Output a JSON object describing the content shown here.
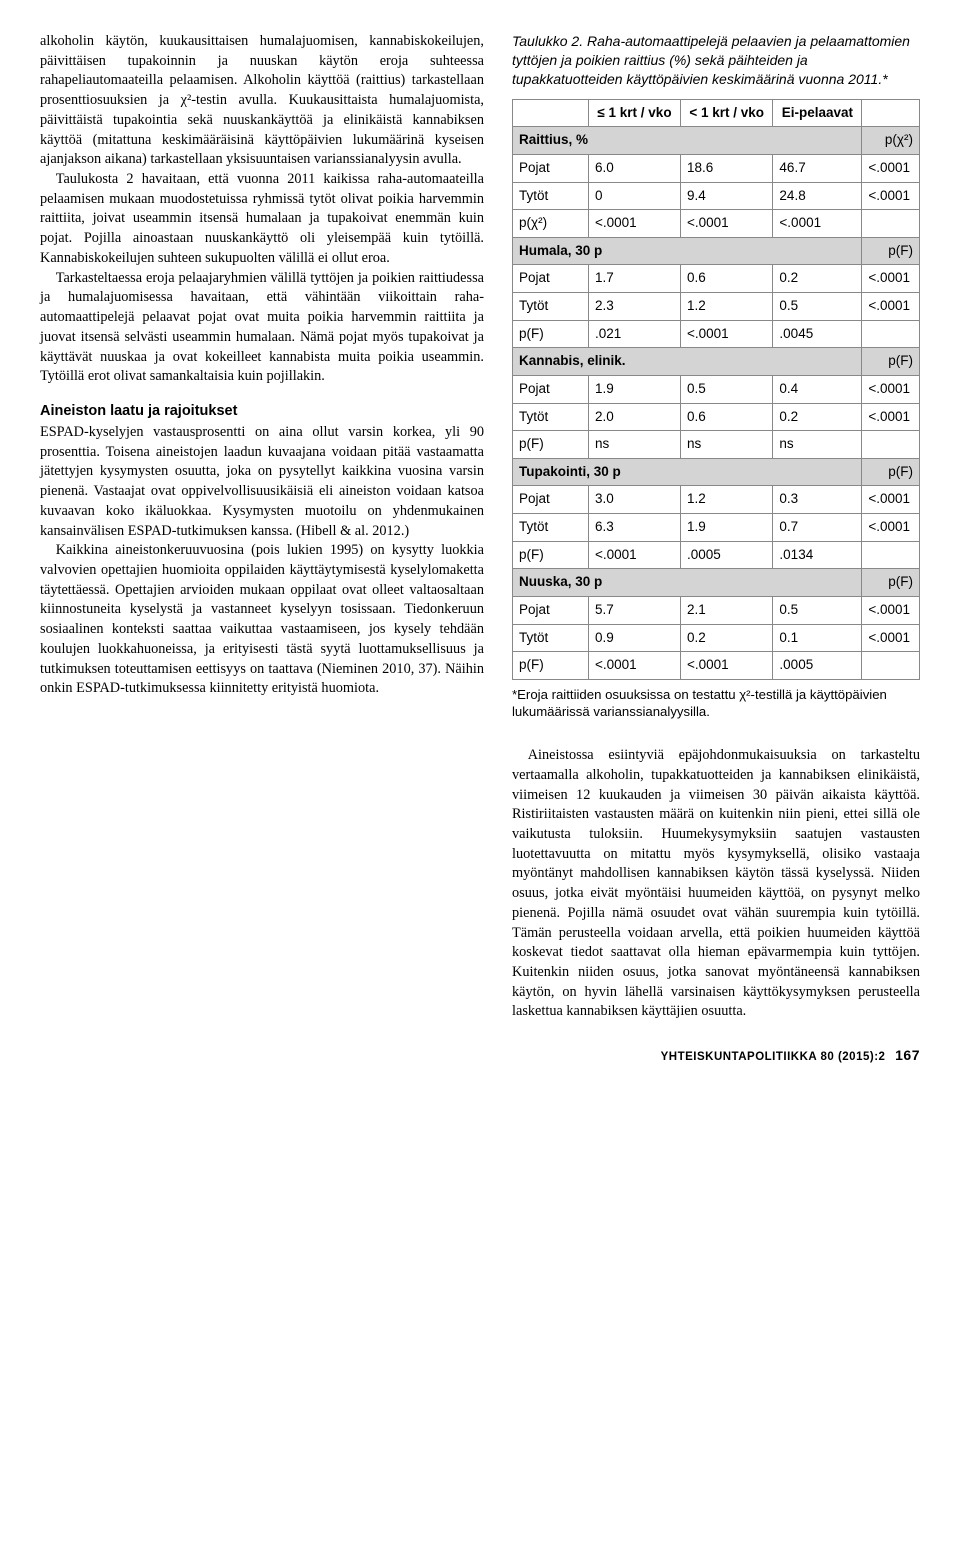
{
  "left": {
    "p1": "alkoholin käytön, kuukausittaisen humalajuomisen, kannabiskokeilujen, päivittäisen tupakoinnin ja nuuskan käytön eroja suhteessa rahapeliautomaateilla pelaamisen. Alkoholin käyttöä (raittius) tarkastellaan prosenttiosuuksien ja χ²-testin avulla. Kuukausittaista humalajuomista, päivittäistä tupakointia sekä nuuskankäyttöä ja elinikäistä kannabiksen käyttöä (mitattuna keskimääräisinä käyttöpäivien lukumäärinä kyseisen ajanjakson aikana) tarkastellaan yksisuuntaisen varianssianalyysin avulla.",
    "p2": "Taulukosta 2 havaitaan, että vuonna 2011 kaikissa raha-automaateilla pelaamisen mukaan muodostetuissa ryhmissä tytöt olivat poikia harvemmin raittiita, joivat useammin itsensä humalaan ja tupakoivat enemmän kuin pojat. Pojilla ainoastaan nuuskankäyttö oli yleisempää kuin tytöillä. Kannabiskokeilujen suhteen sukupuolten välillä ei ollut eroa.",
    "p3": "Tarkasteltaessa eroja pelaajaryhmien välillä tyttöjen ja poikien raittiudessa ja humalajuomisessa havaitaan, että vähintään viikoittain raha-automaattipelejä pelaavat pojat ovat muita poikia harvemmin raittiita ja juovat itsensä selvästi useammin humalaan. Nämä pojat myös tupakoivat ja käyttävät nuuskaa ja ovat kokeilleet kannabista muita poikia useammin. Tytöillä erot olivat samankaltaisia kuin pojillakin.",
    "h1": "Aineiston laatu ja rajoitukset",
    "p4": "ESPAD-kyselyjen vastausprosentti on aina ollut varsin korkea, yli 90 prosenttia. Toisena aineistojen laadun kuvaajana voidaan pitää vastaamatta jätettyjen kysymysten osuutta, joka on pysytellyt kaikkina vuosina varsin pienenä. Vastaajat ovat oppivelvollisuusikäisiä eli aineiston voidaan katsoa kuvaavan koko ikäluokkaa. Kysymysten muotoilu on yhdenmukainen kansainvälisen ESPAD-tutkimuksen kanssa. (Hibell & al. 2012.)",
    "p5": "Kaikkina aineistonkeruuvuosina (pois lukien 1995) on kysytty luokkia valvovien opettajien huomioita oppilaiden käyttäytymisestä kyselylomaketta täytettäessä. Opettajien arvioiden mukaan oppilaat ovat olleet valtaosaltaan kiinnostuneita kyselystä ja vastanneet kyselyyn tosissaan. Tiedonkeruun sosiaalinen konteksti saattaa vaikuttaa vastaamiseen, jos kysely tehdään koulujen luokkahuoneissa, ja erityisesti tästä syytä luottamuksellisuus ja tutkimuksen toteuttamisen eettisyys on taattava (Nieminen 2010, 37). Näihin onkin ESPAD-tutkimuksessa kiinnitetty erityistä huomiota."
  },
  "table": {
    "caption": "Taulukko 2. Raha-automaattipelejä pelaavien ja pelaamattomien tyttöjen ja poikien raittius (%) sekä päihteiden ja tupakkatuotteiden käyttöpäivien keskimäärinä vuonna 2011.*",
    "head": {
      "c1": "≤ 1 krt / vko",
      "c2": "< 1 krt / vko",
      "c3": "Ei-pelaavat"
    },
    "sections": [
      {
        "name": "Raittius, %",
        "stat": "p(χ²)",
        "rows": [
          {
            "label": "Pojat",
            "v1": "6.0",
            "v2": "18.6",
            "v3": "46.7",
            "p": "<.0001"
          },
          {
            "label": "Tytöt",
            "v1": "0",
            "v2": "9.4",
            "v3": "24.8",
            "p": "<.0001"
          },
          {
            "label": "p(χ²)",
            "v1": "<.0001",
            "v2": "<.0001",
            "v3": "<.0001",
            "p": ""
          }
        ]
      },
      {
        "name": "Humala, 30 p",
        "stat": "p(F)",
        "rows": [
          {
            "label": "Pojat",
            "v1": "1.7",
            "v2": "0.6",
            "v3": "0.2",
            "p": "<.0001"
          },
          {
            "label": "Tytöt",
            "v1": "2.3",
            "v2": "1.2",
            "v3": "0.5",
            "p": "<.0001"
          },
          {
            "label": "p(F)",
            "v1": ".021",
            "v2": "<.0001",
            "v3": ".0045",
            "p": ""
          }
        ]
      },
      {
        "name": "Kannabis, elinik.",
        "stat": "p(F)",
        "rows": [
          {
            "label": "Pojat",
            "v1": "1.9",
            "v2": "0.5",
            "v3": "0.4",
            "p": "<.0001"
          },
          {
            "label": "Tytöt",
            "v1": "2.0",
            "v2": "0.6",
            "v3": "0.2",
            "p": "<.0001"
          },
          {
            "label": "p(F)",
            "v1": "ns",
            "v2": "ns",
            "v3": "ns",
            "p": ""
          }
        ]
      },
      {
        "name": "Tupakointi, 30 p",
        "stat": "p(F)",
        "rows": [
          {
            "label": "Pojat",
            "v1": "3.0",
            "v2": "1.2",
            "v3": "0.3",
            "p": "<.0001"
          },
          {
            "label": "Tytöt",
            "v1": "6.3",
            "v2": "1.9",
            "v3": "0.7",
            "p": "<.0001"
          },
          {
            "label": "p(F)",
            "v1": "<.0001",
            "v2": ".0005",
            "v3": ".0134",
            "p": ""
          }
        ]
      },
      {
        "name": "Nuuska, 30 p",
        "stat": "p(F)",
        "rows": [
          {
            "label": "Pojat",
            "v1": "5.7",
            "v2": "2.1",
            "v3": "0.5",
            "p": "<.0001"
          },
          {
            "label": "Tytöt",
            "v1": "0.9",
            "v2": "0.2",
            "v3": "0.1",
            "p": "<.0001"
          },
          {
            "label": "p(F)",
            "v1": "<.0001",
            "v2": "<.0001",
            "v3": ".0005",
            "p": ""
          }
        ]
      }
    ],
    "note": "*Eroja raittiiden osuuksissa on testattu χ²-testillä ja käyttöpäivien lukumäärissä varianssianalyysilla."
  },
  "right": {
    "p1": "Aineistossa esiintyviä epäjohdonmukaisuuksia on tarkasteltu vertaamalla alkoholin, tupakkatuotteiden ja kannabiksen elinikäistä, viimeisen 12 kuukauden ja viimeisen 30 päivän aikaista käyttöä. Ristiriitaisten vastausten määrä on kuitenkin niin pieni, ettei sillä ole vaikutusta tuloksiin. Huumekysymyksiin saatujen vastausten luotettavuutta on mitattu myös kysymyksellä, olisiko vastaaja myöntänyt mahdollisen kannabiksen käytön tässä kyselyssä. Niiden osuus, jotka eivät myöntäisi huumeiden käyttöä, on pysynyt melko pienenä. Pojilla nämä osuudet ovat vähän suurempia kuin tytöillä. Tämän perusteella voidaan arvella, että poikien huumeiden käyttöä koskevat tiedot saattavat olla hieman epävarmempia kuin tyttöjen. Kuitenkin niiden osuus, jotka sanovat myöntäneensä kannabiksen käytön, on hyvin lähellä varsinaisen käyttökysymyksen perusteella laskettua kannabiksen käyttäjien osuutta."
  },
  "footer": {
    "journal": "YHTEISKUNTAPOLITIIKKA 80 (2015):2",
    "page": "167"
  }
}
